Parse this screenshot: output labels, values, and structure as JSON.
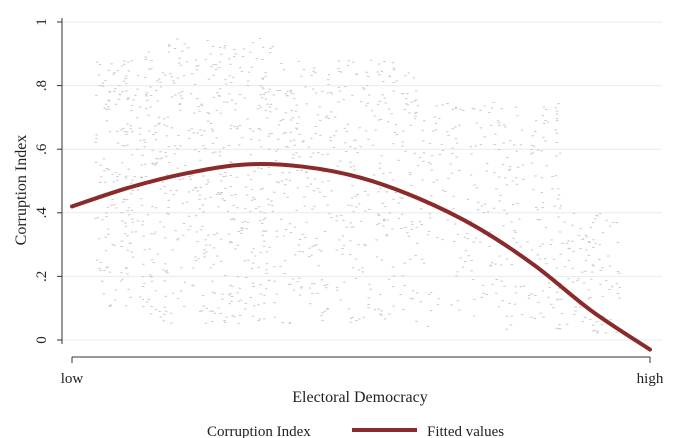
{
  "chart_data": {
    "type": "scatter",
    "title": "",
    "xlabel": "Electoral Democracy",
    "ylabel": "Corruption Index",
    "x_tick_labels": [
      "low",
      "high"
    ],
    "y_ticks": [
      {
        "value": 0,
        "label": "0"
      },
      {
        "value": 0.2,
        "label": ".2"
      },
      {
        "value": 0.4,
        "label": ".4"
      },
      {
        "value": 0.6,
        "label": ".6"
      },
      {
        "value": 0.8,
        "label": ".8"
      },
      {
        "value": 1,
        "label": "1"
      }
    ],
    "xlim": [
      0,
      1
    ],
    "ylim": [
      0,
      1
    ],
    "grid": true,
    "legend_position": "bottom",
    "series": [
      {
        "name": "Corruption Index",
        "kind": "scatter",
        "color": "#c8c8c8",
        "marker": "small-dash",
        "point_cloud_density": [
          {
            "x_range": [
              0.04,
              0.12
            ],
            "y_range": [
              0.1,
              0.88
            ]
          },
          {
            "x_range": [
              0.12,
              0.35
            ],
            "y_range": [
              0.05,
              0.95
            ]
          },
          {
            "x_range": [
              0.35,
              0.6
            ],
            "y_range": [
              0.05,
              0.88
            ]
          },
          {
            "x_range": [
              0.6,
              0.85
            ],
            "y_range": [
              0.03,
              0.75
            ]
          },
          {
            "x_range": [
              0.85,
              0.95
            ],
            "y_range": [
              0.02,
              0.4
            ]
          }
        ]
      },
      {
        "name": "Fitted values",
        "kind": "line",
        "color": "#8b2a2a",
        "x": [
          0.0,
          0.1,
          0.2,
          0.3,
          0.4,
          0.5,
          0.6,
          0.7,
          0.8,
          0.9,
          1.0
        ],
        "y": [
          0.42,
          0.48,
          0.525,
          0.552,
          0.545,
          0.51,
          0.445,
          0.355,
          0.235,
          0.09,
          -0.03
        ]
      }
    ]
  }
}
